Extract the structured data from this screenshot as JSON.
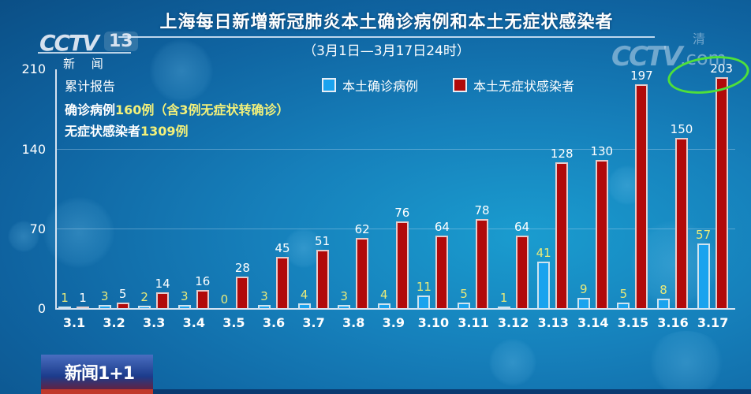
{
  "header": {
    "title": "上海每日新增新冠肺炎本土确诊病例和本土无症状感染者",
    "subtitle": "（3月1日—3月17日24时）"
  },
  "branding": {
    "channel_logo": "CCTV",
    "channel_number": "13",
    "channel_name": "新 闻",
    "watermark_logo": "CCTV",
    "watermark_suffix": ".com",
    "watermark_char": "清",
    "program_logo": "新闻1+1"
  },
  "annotations": {
    "heading": "累计报告",
    "confirmed_prefix": "确诊病例",
    "confirmed_value": "160例（含3例无症状转确诊）",
    "asymptomatic_prefix": "无症状感染者",
    "asymptomatic_value": "1309例"
  },
  "legend": {
    "items": [
      {
        "label": "本土确诊病例",
        "color": "#1aa3ee"
      },
      {
        "label": "本土无症状感染者",
        "color": "#b10a0a"
      }
    ]
  },
  "axis": {
    "y_ticks": [
      "210",
      "140",
      "70",
      "0"
    ]
  },
  "chart_data": {
    "type": "bar",
    "title": "上海每日新增新冠肺炎本土确诊病例和本土无症状感染者",
    "subtitle": "（3月1日—3月17日24时）",
    "xlabel": "",
    "ylabel": "",
    "ylim": [
      0,
      210
    ],
    "yticks": [
      0,
      70,
      140,
      210
    ],
    "grid": true,
    "legend_position": "top-right",
    "categories": [
      "3.1",
      "3.2",
      "3.3",
      "3.4",
      "3.5",
      "3.6",
      "3.7",
      "3.8",
      "3.9",
      "3.10",
      "3.11",
      "3.12",
      "3.13",
      "3.14",
      "3.15",
      "3.16",
      "3.17"
    ],
    "series": [
      {
        "name": "本土确诊病例",
        "color": "#1aa3ee",
        "values": [
          1,
          3,
          2,
          3,
          0,
          3,
          4,
          3,
          4,
          11,
          5,
          1,
          41,
          9,
          5,
          8,
          57
        ]
      },
      {
        "name": "本土无症状感染者",
        "color": "#b10a0a",
        "values": [
          1,
          5,
          14,
          16,
          28,
          45,
          51,
          62,
          76,
          64,
          78,
          64,
          128,
          130,
          197,
          150,
          203
        ]
      }
    ],
    "annotations": [
      "累计报告",
      "确诊病例160例（含3例无症状转确诊）",
      "无症状感染者1309例"
    ],
    "highlight": {
      "category": "3.17",
      "series": "本土无症状感染者",
      "value": 203,
      "mark": "green hand-drawn ellipse"
    }
  }
}
